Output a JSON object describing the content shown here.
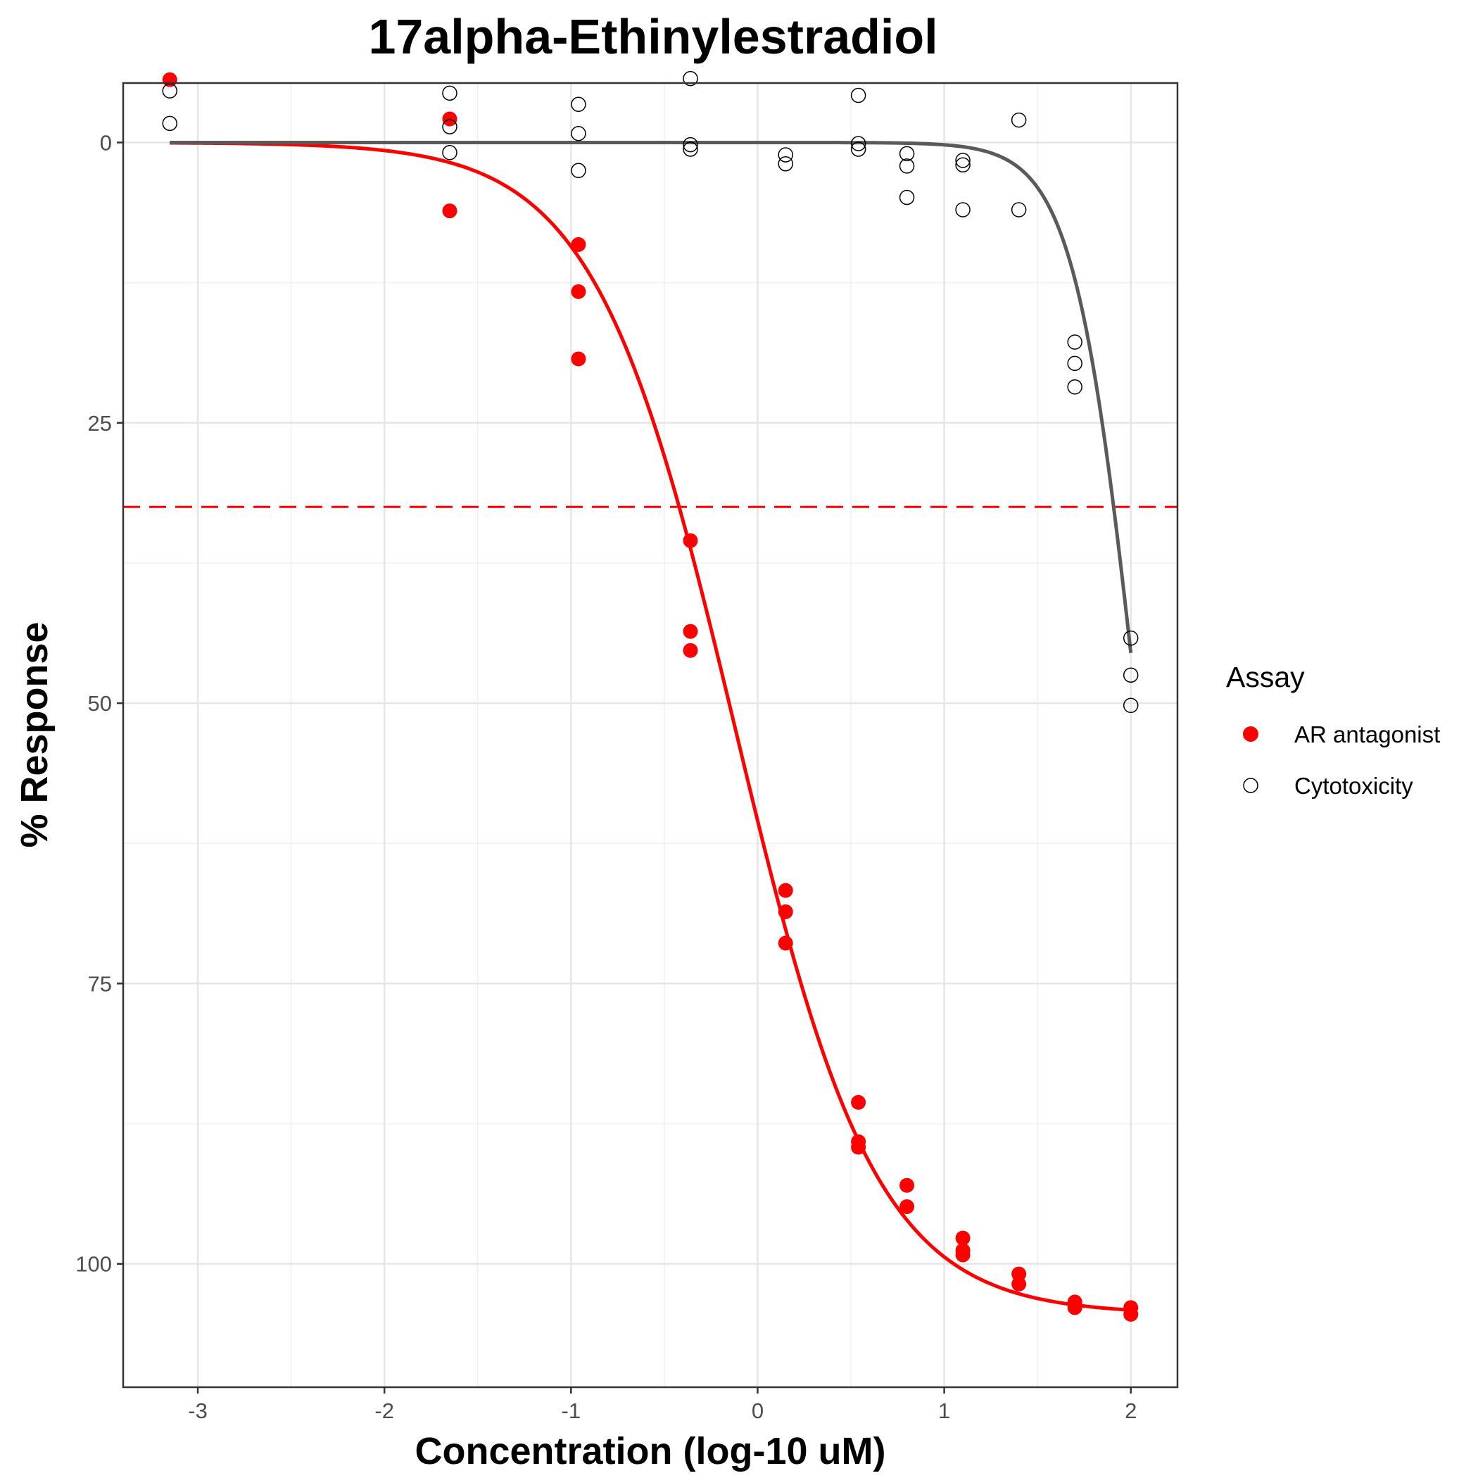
{
  "chart_data": {
    "type": "scatter",
    "title": "17alpha-Ethinylestradiol",
    "xlabel": "Concentration (log-10 uM)",
    "ylabel": "% Response",
    "xlim": [
      -3.4,
      2.25
    ],
    "ylim": [
      111,
      -5.3
    ],
    "y_reversed": true,
    "x_ticks": [
      -3,
      -2,
      -1,
      0,
      1,
      2
    ],
    "x_tick_labels": [
      "-3",
      "-2",
      "-1",
      "0",
      "1",
      "2"
    ],
    "y_ticks": [
      0,
      25,
      50,
      75,
      100
    ],
    "y_tick_labels": [
      "0",
      "25",
      "50",
      "75",
      "100"
    ],
    "grid": true,
    "legend": {
      "title": "Assay",
      "position": "right"
    },
    "threshold_line": {
      "y": 32.5,
      "color": "#ff0000",
      "style": "dashed"
    },
    "series": [
      {
        "name": "AR antagonist",
        "color": "#ff0000",
        "marker": "filled-circle",
        "points": [
          [
            -3.15,
            -5.6
          ],
          [
            -1.65,
            -2.1
          ],
          [
            -1.65,
            6.1
          ],
          [
            -0.96,
            9.1
          ],
          [
            -0.96,
            13.3
          ],
          [
            -0.96,
            19.3
          ],
          [
            -0.36,
            35.5
          ],
          [
            -0.36,
            43.6
          ],
          [
            -0.36,
            45.3
          ],
          [
            0.15,
            66.7
          ],
          [
            0.15,
            68.6
          ],
          [
            0.15,
            71.4
          ],
          [
            0.54,
            85.6
          ],
          [
            0.54,
            89.1
          ],
          [
            0.54,
            89.6
          ],
          [
            0.8,
            93.0
          ],
          [
            0.8,
            94.9
          ],
          [
            1.1,
            97.7
          ],
          [
            1.1,
            98.8
          ],
          [
            1.1,
            99.2
          ],
          [
            1.4,
            100.9
          ],
          [
            1.4,
            101.8
          ],
          [
            1.7,
            103.4
          ],
          [
            1.7,
            103.9
          ],
          [
            2.0,
            103.9
          ],
          [
            2.0,
            104.5
          ]
        ],
        "fit": {
          "bottom": 0,
          "top": 104.5,
          "log_ac50": -0.12,
          "hill": 1.15,
          "x_range": [
            -3.15,
            2.0
          ]
        }
      },
      {
        "name": "Cytotoxicity",
        "color": "#000000",
        "marker": "open-circle",
        "points": [
          [
            -3.15,
            -4.6
          ],
          [
            -3.15,
            -1.7
          ],
          [
            -1.65,
            -4.4
          ],
          [
            -1.65,
            -1.4
          ],
          [
            -1.65,
            0.9
          ],
          [
            -0.96,
            -3.4
          ],
          [
            -0.96,
            -0.8
          ],
          [
            -0.96,
            2.5
          ],
          [
            -0.36,
            -5.7
          ],
          [
            -0.36,
            0.2
          ],
          [
            -0.36,
            0.6
          ],
          [
            0.15,
            1.1
          ],
          [
            0.15,
            1.9
          ],
          [
            0.54,
            -4.2
          ],
          [
            0.54,
            0.1
          ],
          [
            0.54,
            0.6
          ],
          [
            0.8,
            1.0
          ],
          [
            0.8,
            2.1
          ],
          [
            0.8,
            4.9
          ],
          [
            1.1,
            1.6
          ],
          [
            1.1,
            2.0
          ],
          [
            1.1,
            6.0
          ],
          [
            1.4,
            -2.0
          ],
          [
            1.4,
            6.0
          ],
          [
            1.7,
            17.8
          ],
          [
            1.7,
            19.7
          ],
          [
            1.7,
            21.8
          ],
          [
            2.0,
            44.2
          ],
          [
            2.0,
            47.5
          ],
          [
            2.0,
            50.2
          ]
        ],
        "fit": {
          "bottom": 0,
          "top": 100,
          "log_ac50": 2.03,
          "hill": 2.6,
          "x_range": [
            -3.15,
            2.0
          ]
        },
        "fit_color": "#5a5a5a"
      }
    ]
  }
}
